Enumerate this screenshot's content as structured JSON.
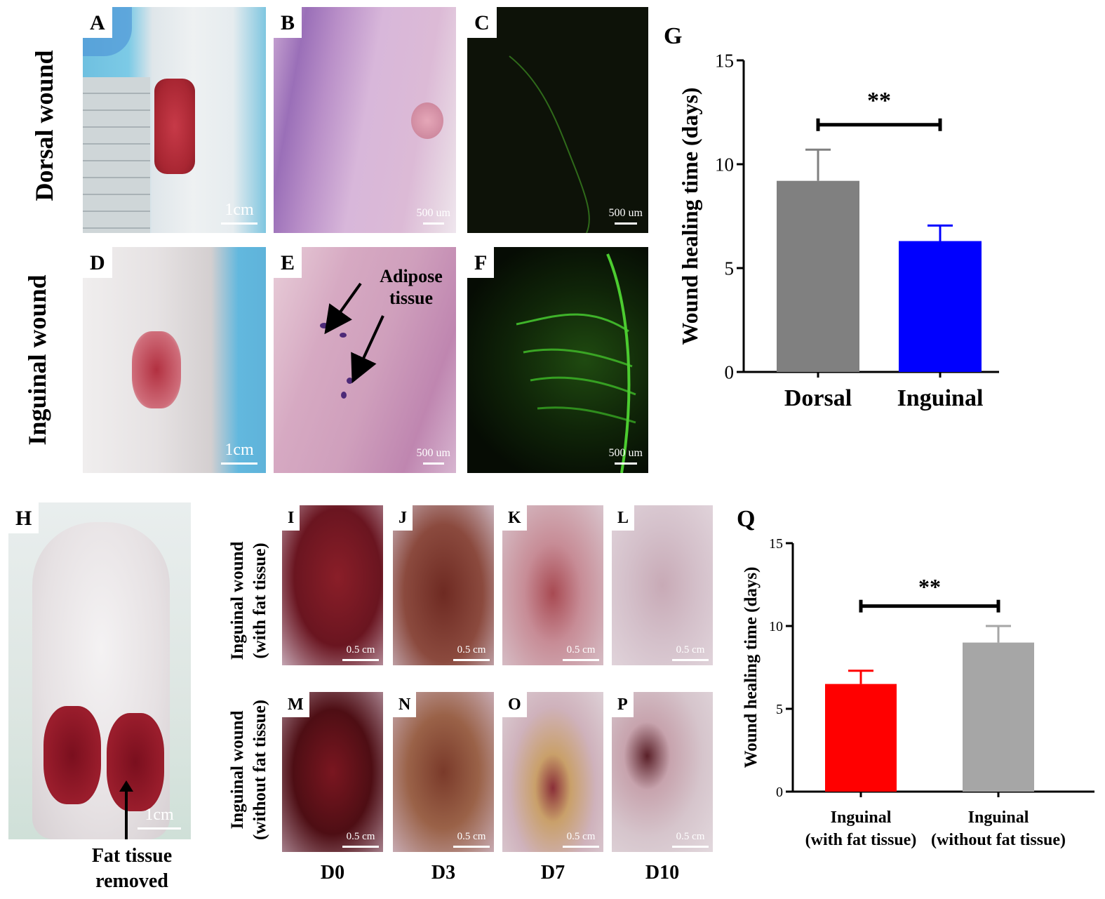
{
  "row_labels": {
    "dorsal": "Dorsal wound",
    "inguinal": "Inguinal wound",
    "with_fat": [
      "Inguinal wound",
      "(with fat tissue)"
    ],
    "without_fat": [
      "Inguinal wound",
      "(without fat tissue)"
    ]
  },
  "panels": {
    "A": {
      "letter": "A",
      "scale": "1cm"
    },
    "B": {
      "letter": "B",
      "scale": "500 um"
    },
    "C": {
      "letter": "C",
      "scale": "500 um"
    },
    "D": {
      "letter": "D",
      "scale": "1cm"
    },
    "E": {
      "letter": "E",
      "scale": "500 um",
      "annotation": [
        "Adipose",
        "tissue"
      ]
    },
    "F": {
      "letter": "F",
      "scale": "500 um"
    },
    "H": {
      "letter": "H",
      "scale": "1cm",
      "annotation": [
        "Fat tissue",
        "removed"
      ]
    },
    "I": {
      "letter": "I",
      "scale": "0.5 cm"
    },
    "J": {
      "letter": "J",
      "scale": "0.5 cm"
    },
    "K": {
      "letter": "K",
      "scale": "0.5 cm"
    },
    "L": {
      "letter": "L",
      "scale": "0.5 cm"
    },
    "M": {
      "letter": "M",
      "scale": "0.5 cm"
    },
    "N": {
      "letter": "N",
      "scale": "0.5 cm"
    },
    "O": {
      "letter": "O",
      "scale": "0.5 cm"
    },
    "P": {
      "letter": "P",
      "scale": "0.5 cm"
    }
  },
  "days": [
    "D0",
    "D3",
    "D7",
    "D10"
  ],
  "colors": {
    "dorsal_bar": "#808080",
    "inguinal_bar": "#0000ff",
    "with_fat_bar": "#ff0000",
    "without_fat_bar": "#a6a6a6"
  },
  "chart_data": [
    {
      "panel": "G",
      "type": "bar",
      "categories": [
        "Dorsal",
        "Inguinal"
      ],
      "values": [
        9.2,
        6.3
      ],
      "errors": [
        1.5,
        0.75
      ],
      "ylabel": "Wound healing time (days)",
      "ylim": [
        0,
        15
      ],
      "yticks": [
        0,
        5,
        10,
        15
      ],
      "significance": "**"
    },
    {
      "panel": "Q",
      "type": "bar",
      "categories": [
        [
          "Inguinal",
          "(with fat tissue)"
        ],
        [
          "Inguinal",
          "(without fat tissue)"
        ]
      ],
      "values": [
        6.5,
        9.0
      ],
      "errors": [
        0.8,
        1.0
      ],
      "ylabel": "Wound healing time (days)",
      "ylim": [
        0,
        15
      ],
      "yticks": [
        0,
        5,
        10,
        15
      ],
      "significance": "**"
    }
  ]
}
